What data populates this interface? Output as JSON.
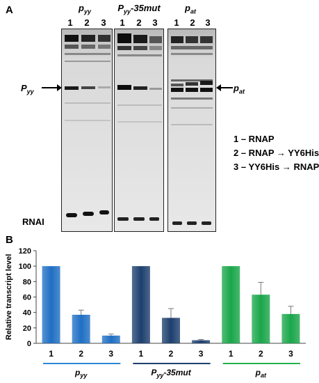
{
  "panel_a": {
    "letter": "A",
    "gels": [
      {
        "title_main": "p",
        "title_sub": "yy",
        "title_suffix": "",
        "lanes": [
          "1",
          "2",
          "3"
        ]
      },
      {
        "title_main": "P",
        "title_sub": "yy",
        "title_suffix": "-35mut",
        "lanes": [
          "1",
          "2",
          "3"
        ]
      },
      {
        "title_main": "p",
        "title_sub": "at",
        "title_suffix": "",
        "lanes": [
          "1",
          "2",
          "3"
        ]
      }
    ],
    "left_marker": {
      "main": "P",
      "sub": "yy"
    },
    "right_marker": {
      "main": "p",
      "sub": "at"
    },
    "bottom_label": "RNAI",
    "legend": [
      "1 – RNAP",
      "2 – RNAP → YY6His",
      "3 – YY6His → RNAP"
    ]
  },
  "panel_b": {
    "letter": "B"
  },
  "chart_data": {
    "type": "bar",
    "ylabel": "Relative transcript level",
    "ylim": [
      0,
      120
    ],
    "yticks": [
      0,
      20,
      40,
      60,
      80,
      100,
      120
    ],
    "groups": [
      {
        "label_main": "p",
        "label_sub": "yy",
        "label_suffix": "",
        "color": "#1f6fc4",
        "line_color": "#2e86d4",
        "categories": [
          "1",
          "2",
          "3"
        ],
        "values": [
          100,
          37,
          10
        ],
        "errors": [
          0,
          6,
          2
        ]
      },
      {
        "label_main": "P",
        "label_sub": "yy",
        "label_suffix": "-35mut",
        "color": "#1d3f6e",
        "line_color": "#1d3f6e",
        "categories": [
          "1",
          "2",
          "3"
        ],
        "values": [
          100,
          33,
          4
        ],
        "errors": [
          0,
          12,
          1
        ]
      },
      {
        "label_main": "p",
        "label_sub": "at",
        "label_suffix": "",
        "color": "#1aa64a",
        "line_color": "#26b24e",
        "categories": [
          "1",
          "2",
          "3"
        ],
        "values": [
          100,
          63,
          38
        ],
        "errors": [
          0,
          16,
          10
        ]
      }
    ]
  }
}
